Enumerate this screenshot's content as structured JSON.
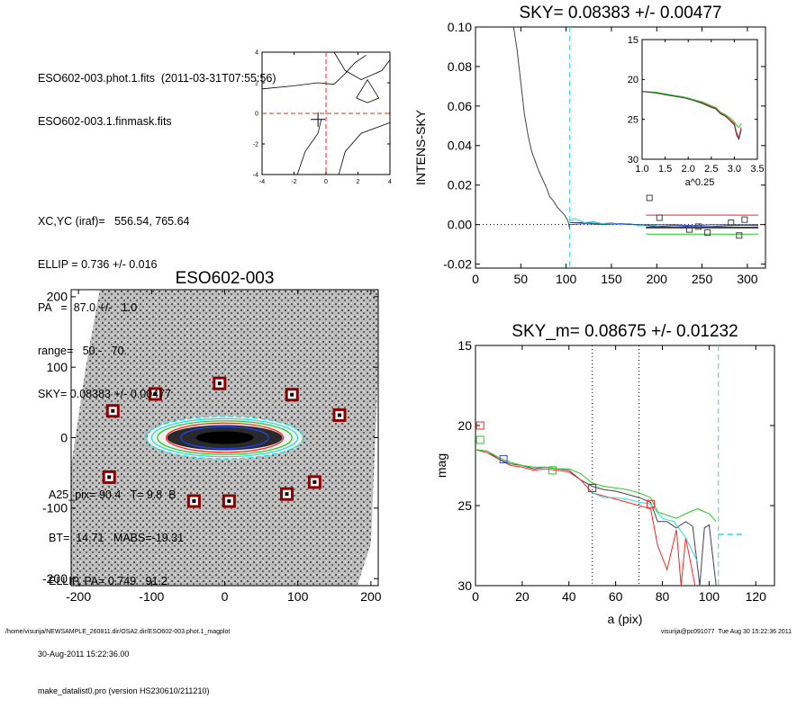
{
  "info": {
    "lines_group1": [
      "ESO602-003.phot.1.fits  (2011-03-31T07:55:56)",
      "ESO602-003.1.finmask.fits"
    ],
    "lines_group2": [
      "XC,YC (iraf)=   556.54, 765.64",
      "ELLIP = 0.736 +/- 0.016",
      "PA   =  87.0 +/-   1.0",
      "range=   50.-   70.",
      "SKY= 0.08383 +/- 0.00477"
    ],
    "lines_group3": [
      "A25_pix= 90.4   T= 9.8  B",
      "BT=  14.71   MABS=-19.31",
      "ELLIP, PA= 0.749   91.2"
    ],
    "date": "30-Aug-2011 15:22:36.00",
    "program": "make_datalist0.pro (version HS230610/211210)"
  },
  "footer": {
    "path": "/home/visurija/NEWSAMPLE_260811.dir/OSA2.dir/ESO602-003.phot.1_magplot",
    "user": "visurija@pc091077  Tue Aug 30 15:22:36 2011"
  },
  "colors": {
    "red": "#ff2222",
    "green": "#22cc22",
    "cyan": "#22dddd",
    "blue": "#2244ff",
    "gray": "#444444",
    "darkred": "#8b0000"
  },
  "chart_data": [
    {
      "id": "contour",
      "type": "contour",
      "title": "",
      "xlim": [
        -4,
        4
      ],
      "ylim": [
        -4,
        4
      ],
      "xticks": [
        -4,
        -2,
        0,
        2,
        4
      ],
      "yticks": [
        -4,
        -2,
        0,
        2,
        4
      ],
      "center_marker": [
        -0.5,
        -0.4
      ],
      "dashed_cross": [
        0,
        0
      ],
      "contours": [
        [
          [
            -4,
            1.6
          ],
          [
            -2,
            1.8
          ],
          [
            -0.5,
            2.0
          ],
          [
            0.5,
            1.9
          ],
          [
            1.2,
            2.6
          ],
          [
            1.8,
            3.3
          ],
          [
            2.5,
            3.8
          ]
        ],
        [
          [
            -0.3,
            -0.4
          ],
          [
            -0.5,
            -1.3
          ],
          [
            -1.3,
            -2.5
          ],
          [
            -1.8,
            -4.0
          ]
        ],
        [
          [
            0.5,
            4.0
          ],
          [
            1.2,
            2.8
          ],
          [
            2.2,
            2.2
          ],
          [
            3.5,
            2.8
          ],
          [
            4.0,
            3.5
          ]
        ],
        [
          [
            0.8,
            -4.0
          ],
          [
            1.2,
            -2.5
          ],
          [
            2.2,
            -1.3
          ],
          [
            3.5,
            -0.8
          ],
          [
            4.0,
            -0.6
          ]
        ],
        [
          [
            1.9,
            1.0
          ],
          [
            2.6,
            2.2
          ],
          [
            3.3,
            1.0
          ],
          [
            2.6,
            0.7
          ],
          [
            1.9,
            1.0
          ]
        ]
      ]
    },
    {
      "id": "sky",
      "type": "line",
      "title": "SKY= 0.08383 +/- 0.00477",
      "xlabel": "",
      "ylabel": "INTENS-SKY",
      "xlim": [
        0,
        320
      ],
      "ylim": [
        -0.022,
        0.1
      ],
      "xticks": [
        0,
        50,
        100,
        150,
        200,
        250,
        300
      ],
      "yticks": [
        -0.02,
        0.0,
        0.02,
        0.04,
        0.06,
        0.08,
        0.1
      ],
      "ytick_labels": [
        "-0.02",
        "0.00",
        "0.02",
        "0.04",
        "0.06",
        "0.08",
        "0.10"
      ],
      "vline_x": 104,
      "series": [
        {
          "color": "gray",
          "x": [
            42,
            46,
            50,
            54,
            58,
            62,
            66,
            70,
            74,
            78,
            82,
            86,
            90,
            94,
            98,
            102,
            104
          ],
          "y": [
            0.1,
            0.088,
            0.072,
            0.056,
            0.045,
            0.037,
            0.032,
            0.027,
            0.023,
            0.019,
            0.014,
            0.012,
            0.009,
            0.007,
            0.005,
            0.002,
            -0.002
          ]
        },
        {
          "color": "gray",
          "x": [
            104,
            120,
            140,
            160,
            180,
            200,
            220,
            240,
            260,
            280,
            300,
            312
          ],
          "y": [
            0.001,
            0.001,
            0.0005,
            0.0002,
            0.0,
            -0.001,
            -0.0005,
            -0.001,
            -0.001,
            -0.0005,
            -0.0003,
            -0.0005
          ]
        },
        {
          "color": "cyan",
          "x": [
            104,
            110,
            120,
            130,
            140,
            150,
            160,
            170,
            180,
            190,
            200
          ],
          "y": [
            0.002,
            0.003,
            0.001,
            0.0015,
            0.0005,
            0.001,
            0.0,
            0.0005,
            -0.0005,
            0.0,
            -0.0005
          ]
        },
        {
          "color": "blue",
          "x": [
            104,
            120,
            140,
            160,
            180,
            200,
            220,
            240,
            260,
            280,
            300,
            312
          ],
          "y": [
            0.0,
            0.0005,
            0.0,
            0.0005,
            0.0,
            0.0,
            0.0,
            -0.0005,
            0.0,
            0.0,
            0.0,
            0.0
          ]
        }
      ],
      "hlines": [
        {
          "color": "red",
          "y": 0.0048,
          "x0": 188,
          "x1": 312
        },
        {
          "color": "gray",
          "y": -0.0015,
          "x0": 188,
          "x1": 312
        },
        {
          "color": "green",
          "y": -0.0048,
          "x0": 188,
          "x1": 312
        }
      ],
      "markers": [
        [
          192,
          0.0135
        ],
        [
          203,
          0.0035
        ],
        [
          236,
          -0.0025
        ],
        [
          246,
          -0.001
        ],
        [
          256,
          -0.004
        ],
        [
          282,
          0.001
        ],
        [
          297,
          0.0025
        ],
        [
          291,
          -0.0055
        ]
      ],
      "inset": {
        "xlabel": "a^0.25",
        "xlim": [
          1.0,
          3.5
        ],
        "ylim": [
          30,
          15
        ],
        "xticks": [
          1.0,
          1.5,
          2.0,
          2.5,
          3.0,
          3.5
        ],
        "xtick_labels": [
          "1.0",
          "1.5",
          "2.0",
          "2.5",
          "3.0",
          "3.5"
        ],
        "yticks": [
          15,
          20,
          25,
          30
        ],
        "series": [
          {
            "color": "red",
            "x": [
              1.0,
              1.3,
              1.6,
              1.9,
              2.1,
              2.3,
              2.5,
              2.6,
              2.7,
              2.8,
              2.9,
              3.0,
              3.05,
              3.1,
              3.15
            ],
            "y": [
              21.5,
              21.7,
              22.0,
              22.2,
              22.5,
              22.9,
              23.4,
              23.6,
              24.2,
              24.5,
              25.0,
              25.5,
              26.7,
              27.3,
              26.0
            ]
          },
          {
            "color": "green",
            "x": [
              1.0,
              1.3,
              1.6,
              1.9,
              2.1,
              2.3,
              2.5,
              2.6,
              2.7,
              2.8,
              2.9,
              3.0,
              3.05,
              3.1,
              3.15
            ],
            "y": [
              21.5,
              21.6,
              21.9,
              22.2,
              22.5,
              22.8,
              23.3,
              23.5,
              24.1,
              24.4,
              24.8,
              25.3,
              25.8,
              26.0,
              25.5
            ]
          },
          {
            "color": "gray",
            "x": [
              1.0,
              1.3,
              1.6,
              1.9,
              2.1,
              2.3,
              2.5,
              2.6,
              2.7,
              2.8,
              2.9,
              3.0,
              3.05,
              3.1,
              3.15
            ],
            "y": [
              21.5,
              21.7,
              22.0,
              22.3,
              22.6,
              23.0,
              23.5,
              23.7,
              24.3,
              24.6,
              25.1,
              25.7,
              27.0,
              27.5,
              26.3
            ]
          }
        ]
      }
    },
    {
      "id": "image",
      "type": "image",
      "title": "ESO602-003",
      "xlim": [
        -210,
        210
      ],
      "ylim": [
        -210,
        210
      ],
      "xticks": [
        -200,
        -100,
        0,
        100,
        200
      ],
      "yticks": [
        -200,
        -100,
        0,
        100,
        200
      ],
      "stars": [
        [
          -153,
          38
        ],
        [
          -95,
          62
        ],
        [
          -7,
          77
        ],
        [
          92,
          61
        ],
        [
          157,
          32
        ],
        [
          -158,
          -56
        ],
        [
          -42,
          -90
        ],
        [
          6,
          -90
        ],
        [
          85,
          -80
        ],
        [
          123,
          -63
        ]
      ],
      "ellipses": [
        {
          "color": "cyan",
          "rx": 108,
          "ry": 29,
          "dashed": true
        },
        {
          "color": "cyan",
          "rx": 100,
          "ry": 26,
          "dashed": false
        },
        {
          "color": "green",
          "rx": 92,
          "ry": 23,
          "dashed": false
        },
        {
          "color": "red",
          "rx": 80,
          "ry": 20,
          "dashed": false
        },
        {
          "color": "blue",
          "rx": 60,
          "ry": 15,
          "dashed": false
        }
      ]
    },
    {
      "id": "mag",
      "type": "line",
      "title": "SKY_m=  0.08675 +/- 0.01232",
      "xlabel": "a (pix)",
      "ylabel": "mag",
      "xlim": [
        0,
        128
      ],
      "ylim": [
        30,
        15
      ],
      "xticks": [
        0,
        20,
        40,
        60,
        80,
        100,
        120
      ],
      "yticks": [
        15,
        20,
        25,
        30
      ],
      "dotted_vlines": [
        50,
        70
      ],
      "vline_x": 104,
      "hline_cyan": {
        "y": 26.8,
        "x0": 104,
        "x1": 114
      },
      "series": [
        {
          "color": "gray",
          "x": [
            0,
            5,
            10,
            15,
            20,
            25,
            30,
            35,
            40,
            45,
            50,
            55,
            60,
            65,
            70,
            75,
            78,
            82,
            86,
            90,
            93,
            96,
            98,
            100,
            103
          ],
          "y": [
            21.5,
            21.6,
            22.1,
            22.4,
            22.5,
            22.7,
            22.6,
            22.7,
            22.8,
            23.4,
            23.8,
            24.0,
            24.1,
            24.3,
            24.5,
            24.8,
            26.0,
            26.0,
            26.4,
            26.0,
            26.3,
            30.0,
            26.4,
            26.2,
            30.0
          ]
        },
        {
          "color": "red",
          "x": [
            0,
            5,
            10,
            15,
            20,
            25,
            30,
            35,
            40,
            45,
            50,
            55,
            60,
            65,
            70,
            75,
            78,
            82,
            86,
            88,
            90,
            92,
            94
          ],
          "y": [
            21.5,
            21.7,
            22.1,
            22.5,
            22.6,
            22.8,
            22.7,
            22.8,
            22.9,
            23.4,
            24.2,
            24.4,
            24.6,
            24.8,
            25.0,
            25.2,
            27.5,
            29.0,
            26.5,
            30.0,
            27.0,
            28.5,
            30.0
          ]
        },
        {
          "color": "green",
          "x": [
            0,
            5,
            10,
            15,
            20,
            25,
            30,
            35,
            40,
            45,
            50,
            55,
            60,
            65,
            70,
            75,
            78,
            82,
            86,
            90,
            95,
            100,
            103
          ],
          "y": [
            21.5,
            21.6,
            22.0,
            22.3,
            22.5,
            22.6,
            22.6,
            22.7,
            22.7,
            23.0,
            23.6,
            23.8,
            23.9,
            24.0,
            24.2,
            24.5,
            25.4,
            25.6,
            25.8,
            25.5,
            25.2,
            25.5,
            26.0
          ]
        },
        {
          "color": "cyan",
          "x": [
            50,
            55,
            60,
            65,
            70,
            75,
            80,
            85,
            90,
            95
          ],
          "y": [
            24.2,
            24.5,
            24.5,
            24.6,
            24.8,
            24.9,
            25.8,
            26.0,
            27.0,
            28.5
          ]
        }
      ],
      "markers": [
        {
          "color": "red",
          "x": 2,
          "y": 20.0
        },
        {
          "color": "green",
          "x": 2,
          "y": 20.9
        },
        {
          "color": "blue",
          "x": 12,
          "y": 22.1
        },
        {
          "color": "green",
          "x": 33,
          "y": 22.8
        },
        {
          "color": "gray",
          "x": 50,
          "y": 23.9
        },
        {
          "color": "red",
          "x": 75,
          "y": 24.9
        }
      ]
    }
  ]
}
